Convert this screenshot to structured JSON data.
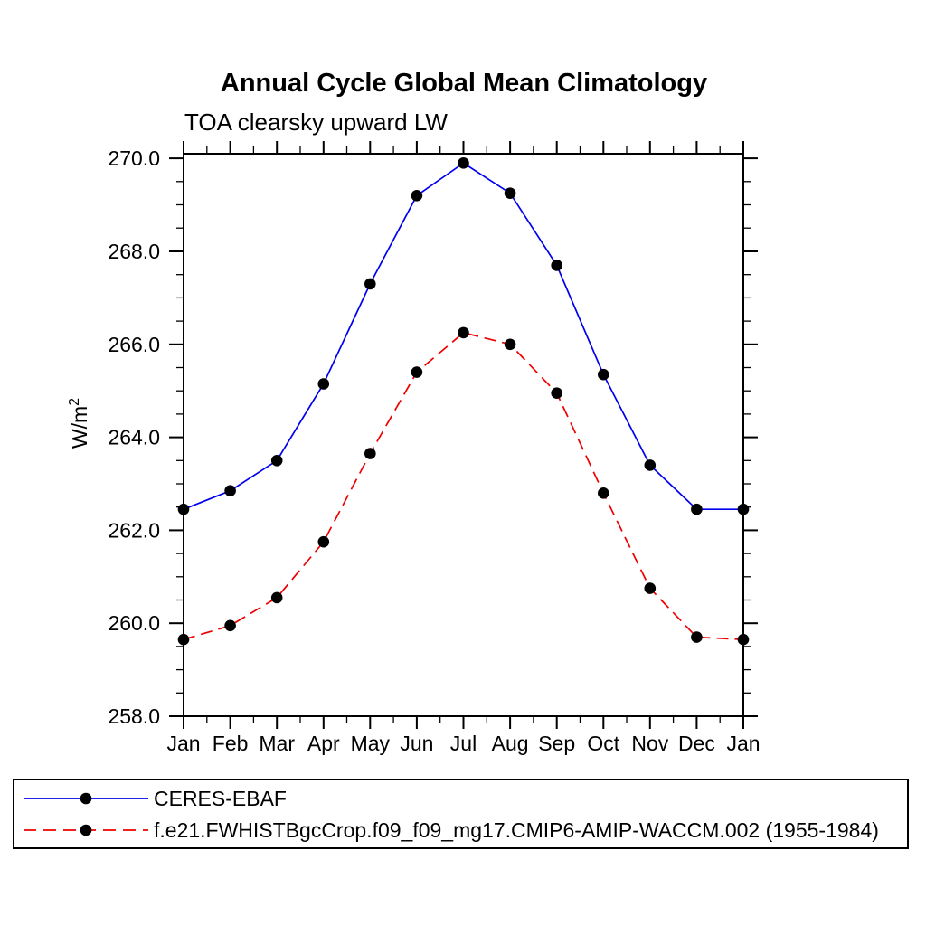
{
  "header": {
    "title": "Annual Cycle Global Mean Climatology",
    "subtitle": "TOA clearsky upward LW"
  },
  "y_axis": {
    "label_base": "W/m",
    "label_sup": "2"
  },
  "legend": {
    "items": [
      {
        "label": "CERES-EBAF"
      },
      {
        "label": "f.e21.FWHISTBgcCrop.f09_f09_mg17.CMIP6-AMIP-WACCM.002 (1955-1984)"
      }
    ]
  },
  "chart_data": {
    "type": "line",
    "title": "Annual Cycle Global Mean Climatology",
    "subtitle": "TOA clearsky upward LW",
    "xlabel": "",
    "ylabel": "W/m²",
    "categories": [
      "Jan",
      "Feb",
      "Mar",
      "Apr",
      "May",
      "Jun",
      "Jul",
      "Aug",
      "Sep",
      "Oct",
      "Nov",
      "Dec",
      "Jan"
    ],
    "series": [
      {
        "name": "CERES-EBAF",
        "color": "#0000ee",
        "line_style": "solid",
        "marker": "filled-black-circle",
        "values": [
          262.45,
          262.85,
          263.5,
          265.15,
          267.3,
          269.2,
          269.9,
          269.25,
          267.7,
          265.35,
          263.4,
          262.45,
          262.45
        ]
      },
      {
        "name": "f.e21.FWHISTBgcCrop.f09_f09_mg17.CMIP6-AMIP-WACCM.002 (1955-1984)",
        "color": "#ee0000",
        "line_style": "dashed",
        "marker": "filled-black-circle",
        "values": [
          259.65,
          259.95,
          260.55,
          261.75,
          263.65,
          265.4,
          266.25,
          266.0,
          264.95,
          262.8,
          260.75,
          259.7,
          259.65
        ]
      }
    ],
    "ylim": [
      258.0,
      270.1
    ],
    "ytick_labels": [
      "258.0",
      "260.0",
      "262.0",
      "264.0",
      "266.0",
      "268.0",
      "270.0"
    ],
    "ytick_major_interval": 2.0,
    "ytick_minor_interval": 0.5,
    "xtick_minor": "half-month",
    "grid": false,
    "frame": "box-with-outward-ticks",
    "legend_position": "bottom-left-box",
    "marker_color": "#000000"
  }
}
